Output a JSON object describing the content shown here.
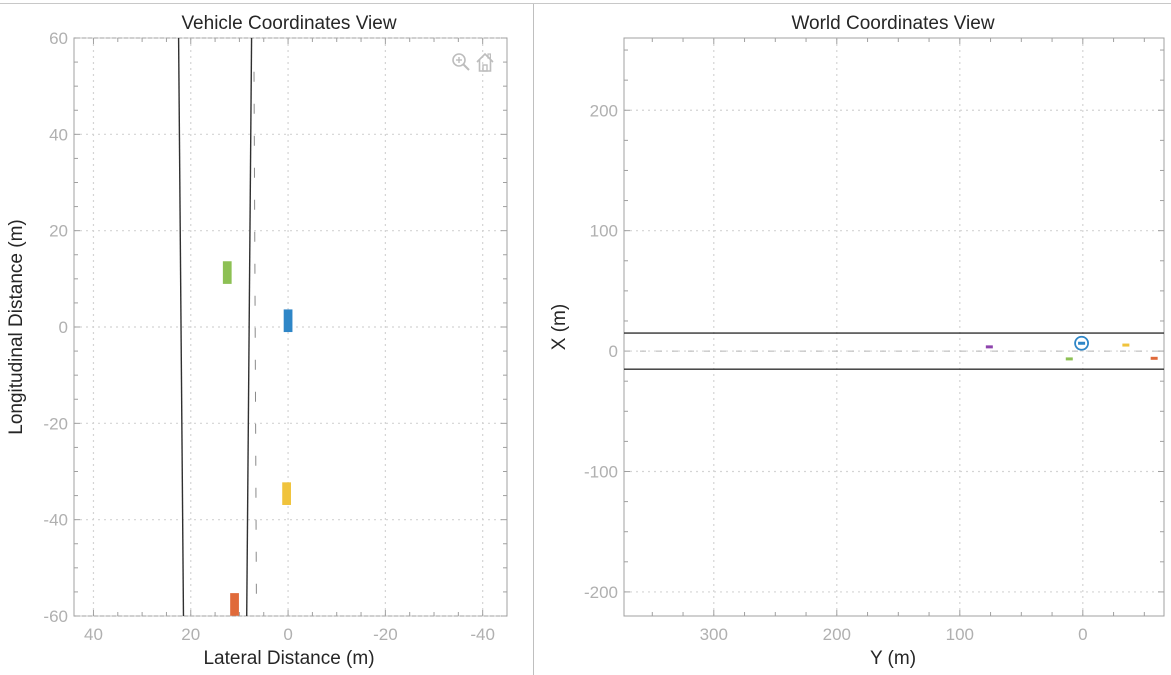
{
  "colors": {
    "ego": "#2e86c7",
    "green": "#8dc054",
    "yellow": "#f0c33c",
    "orange": "#e06a3a",
    "purple": "#8e44ad",
    "lane": "#303030",
    "grid": "#d4d4d4",
    "axis": "#a0a0a0"
  },
  "toolbar": {
    "icons": [
      "zoom-in-icon",
      "home-icon"
    ]
  },
  "chart_data": [
    {
      "type": "scatter",
      "title": "Vehicle Coordinates View",
      "xlabel": "Lateral Distance (m)",
      "ylabel": "Longitudinal Distance (m)",
      "xlim": [
        44,
        -45
      ],
      "ylim": [
        -60,
        60
      ],
      "x_reversed": true,
      "xticks": [
        40,
        20,
        0,
        -20,
        -40
      ],
      "yticks": [
        60,
        40,
        20,
        0,
        -20,
        -40,
        -60
      ],
      "grid": true,
      "lane_lines": [
        {
          "style": "solid",
          "points": [
            [
              22.5,
              60
            ],
            [
              21.5,
              -60
            ]
          ]
        },
        {
          "style": "solid",
          "points": [
            [
              7.5,
              60
            ],
            [
              8.5,
              -60
            ]
          ]
        },
        {
          "style": "dashed",
          "points": [
            [
              7,
              53
            ],
            [
              6.5,
              -58
            ]
          ]
        }
      ],
      "vehicles": [
        {
          "color": "green",
          "x": 12.5,
          "y": 11.3,
          "length": 4.7,
          "width": 1.8
        },
        {
          "color": "ego",
          "x": 0,
          "y": 1.3,
          "length": 4.7,
          "width": 1.8
        },
        {
          "color": "yellow",
          "x": 0.3,
          "y": -34.6,
          "length": 4.7,
          "width": 1.8
        },
        {
          "color": "orange",
          "x": 11,
          "y": -57.6,
          "length": 4.7,
          "width": 1.8
        }
      ]
    },
    {
      "type": "scatter",
      "title": "World Coordinates View",
      "xlabel": "Y (m)",
      "ylabel": "X (m)",
      "xlim": [
        373,
        -66
      ],
      "ylim": [
        -220,
        260
      ],
      "x_reversed": true,
      "xticks": [
        300,
        200,
        100,
        0
      ],
      "yticks": [
        200,
        100,
        0,
        -100,
        -200
      ],
      "grid": true,
      "road_lines": [
        {
          "style": "solid",
          "y": 15
        },
        {
          "style": "solid",
          "y": -15
        },
        {
          "style": "dashed",
          "y": 0
        }
      ],
      "ego_marker": {
        "x": 1,
        "y": 6.5
      },
      "vehicles": [
        {
          "color": "purple",
          "x": 76,
          "y": 3.5
        },
        {
          "color": "green",
          "x": 11,
          "y": -6.5
        },
        {
          "color": "yellow",
          "x": -35,
          "y": 5
        },
        {
          "color": "orange",
          "x": -58,
          "y": -6
        }
      ]
    }
  ]
}
